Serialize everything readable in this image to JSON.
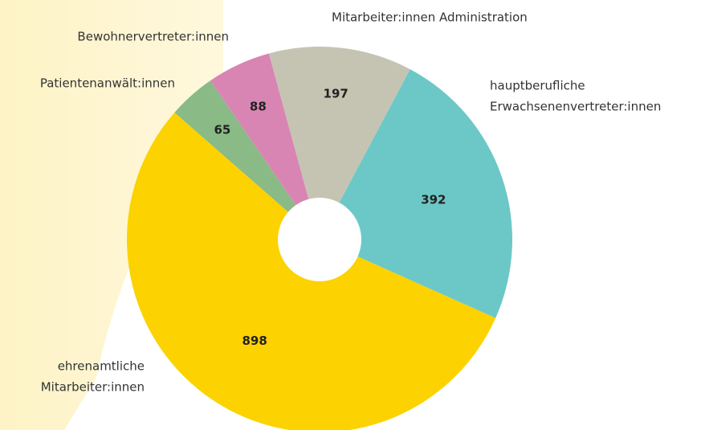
{
  "chart_data": {
    "type": "donut",
    "categories": [
      [
        "hauptberufliche",
        "Erwachsenenvertreter:innen"
      ],
      [
        "ehrenamtliche",
        "Mitarbeiter:innen"
      ],
      [
        "Patientenanwält:innen"
      ],
      [
        "Bewohnervertreter:innen"
      ],
      [
        "Mitarbeiter:innen Administration"
      ]
    ],
    "values": [
      392,
      898,
      65,
      88,
      197
    ],
    "colors": [
      "#6cc8c7",
      "#fcd200",
      "#8aba86",
      "#d985b3",
      "#c5c4b3"
    ]
  }
}
